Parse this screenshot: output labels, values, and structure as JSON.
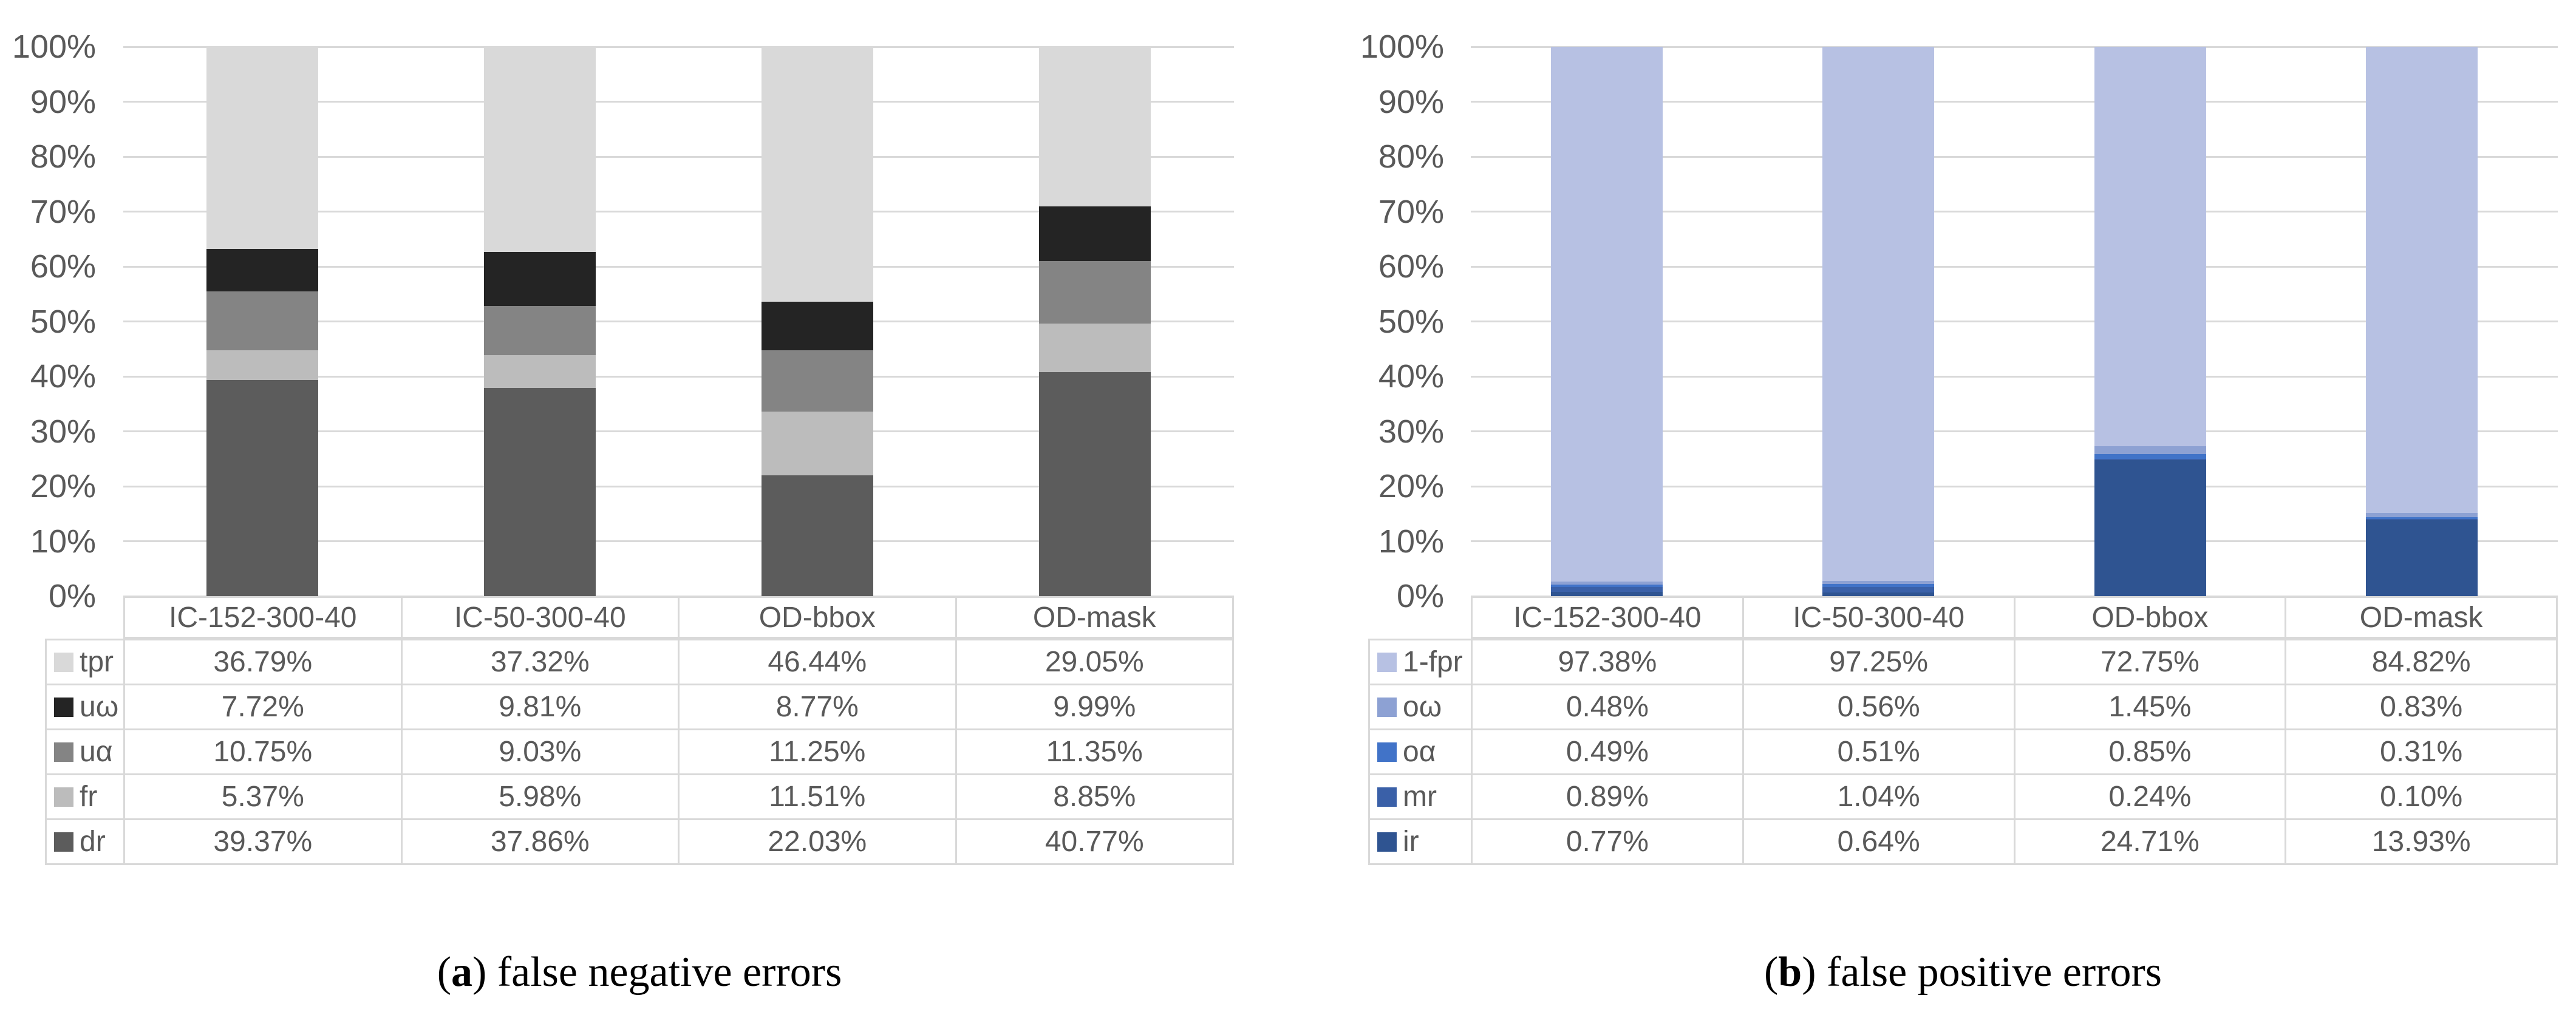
{
  "figure": {
    "background": "#ffffff",
    "text_color": "#595959",
    "grid_color": "#d9d9d9",
    "caption_color": "#000000"
  },
  "chart_data": [
    {
      "type": "bar",
      "stacked": true,
      "units": "percent",
      "title": "",
      "xlabel": "",
      "ylabel": "",
      "ylim": [
        0,
        100
      ],
      "grid": true,
      "y_tick_labels": [
        "100%",
        "90%",
        "80%",
        "70%",
        "60%",
        "50%",
        "40%",
        "30%",
        "20%",
        "10%",
        "0%"
      ],
      "legend_position": "table-below-left-column",
      "stack_order": "last-series-at-bottom",
      "value_format": "0.00%",
      "categories": [
        "IC-152-300-40",
        "IC-50-300-40",
        "OD-bbox",
        "OD-mask"
      ],
      "series": [
        {
          "name": "tpr",
          "color": "#d9d9d9",
          "values": [
            36.79,
            37.32,
            46.44,
            29.05
          ]
        },
        {
          "name": "uω",
          "color": "#242424",
          "values": [
            7.72,
            9.81,
            8.77,
            9.99
          ]
        },
        {
          "name": "uα",
          "color": "#848484",
          "values": [
            10.75,
            9.03,
            11.25,
            11.35
          ]
        },
        {
          "name": "fr",
          "color": "#bcbcbc",
          "values": [
            5.37,
            5.98,
            11.51,
            8.85
          ]
        },
        {
          "name": "dr",
          "color": "#5c5c5c",
          "values": [
            39.37,
            37.86,
            22.03,
            40.77
          ]
        }
      ],
      "caption": {
        "open": "(",
        "label": "a",
        "close": ") ",
        "text": "false negative errors"
      }
    },
    {
      "type": "bar",
      "stacked": true,
      "units": "percent",
      "title": "",
      "xlabel": "",
      "ylabel": "",
      "ylim": [
        0,
        100
      ],
      "grid": true,
      "y_tick_labels": [
        "100%",
        "90%",
        "80%",
        "70%",
        "60%",
        "50%",
        "40%",
        "30%",
        "20%",
        "10%",
        "0%"
      ],
      "legend_position": "table-below-left-column",
      "stack_order": "last-series-at-bottom",
      "value_format": "0.00%",
      "categories": [
        "IC-152-300-40",
        "IC-50-300-40",
        "OD-bbox",
        "OD-mask"
      ],
      "series": [
        {
          "name": "1-fpr",
          "color": "#b7c1e3",
          "values": [
            97.38,
            97.25,
            72.75,
            84.82
          ]
        },
        {
          "name": "oω",
          "color": "#8da1d3",
          "values": [
            0.48,
            0.56,
            1.45,
            0.83
          ]
        },
        {
          "name": "oα",
          "color": "#4173c8",
          "values": [
            0.49,
            0.51,
            0.85,
            0.31
          ]
        },
        {
          "name": "mr",
          "color": "#3a60a8",
          "values": [
            0.89,
            1.04,
            0.24,
            0.1
          ]
        },
        {
          "name": "ir",
          "color": "#2f5491",
          "values": [
            0.77,
            0.64,
            24.71,
            13.93
          ]
        }
      ],
      "caption": {
        "open": "(",
        "label": "b",
        "close": ") ",
        "text": "false positive errors"
      }
    }
  ]
}
